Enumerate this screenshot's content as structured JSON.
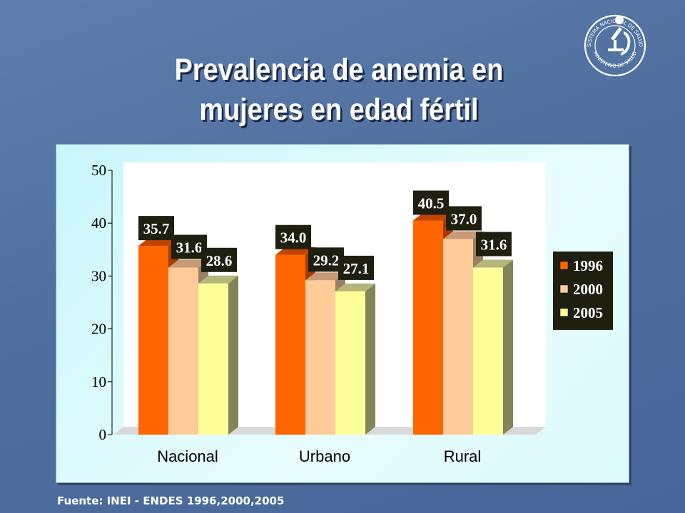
{
  "slide": {
    "title_line1": "Prevalencia de anemia en",
    "title_line2": "mujeres en edad fértil",
    "source": "Fuente: INEI - ENDES 1996,2000,2005",
    "logo": {
      "icon": "ministerio-de-salud-seal",
      "text_top": "SISTEMA NACIONAL DE SALUD",
      "text_bottom": "MINISTERIO DE SALUD"
    }
  },
  "chart_data": {
    "type": "bar",
    "title": "",
    "xlabel": "",
    "ylabel": "",
    "ylim": [
      0,
      50
    ],
    "yticks": [
      0,
      10,
      20,
      30,
      40,
      50
    ],
    "categories": [
      "Nacional",
      "Urbano",
      "Rural"
    ],
    "series": [
      {
        "name": "1996",
        "values": [
          35.7,
          34.0,
          40.5
        ],
        "value_labels": [
          "35.7",
          "34.0",
          "40.5"
        ],
        "color": "#ff6600",
        "side": "#a63b00",
        "top": "#c04400"
      },
      {
        "name": "2000",
        "values": [
          31.6,
          29.2,
          37.0
        ],
        "value_labels": [
          "31.6",
          "29.2",
          "37.0"
        ],
        "color": "#ffcc99",
        "side": "#9b7f62",
        "top": "#c69a76"
      },
      {
        "name": "2005",
        "values": [
          28.6,
          27.1,
          31.6
        ],
        "value_labels": [
          "28.6",
          "27.1",
          "31.6"
        ],
        "color": "#ffff99",
        "side": "#84845a",
        "top": "#b4b67a"
      }
    ],
    "legend_position": "right",
    "label_box_color": "#1f1f10",
    "three_d": true,
    "grid": false
  }
}
